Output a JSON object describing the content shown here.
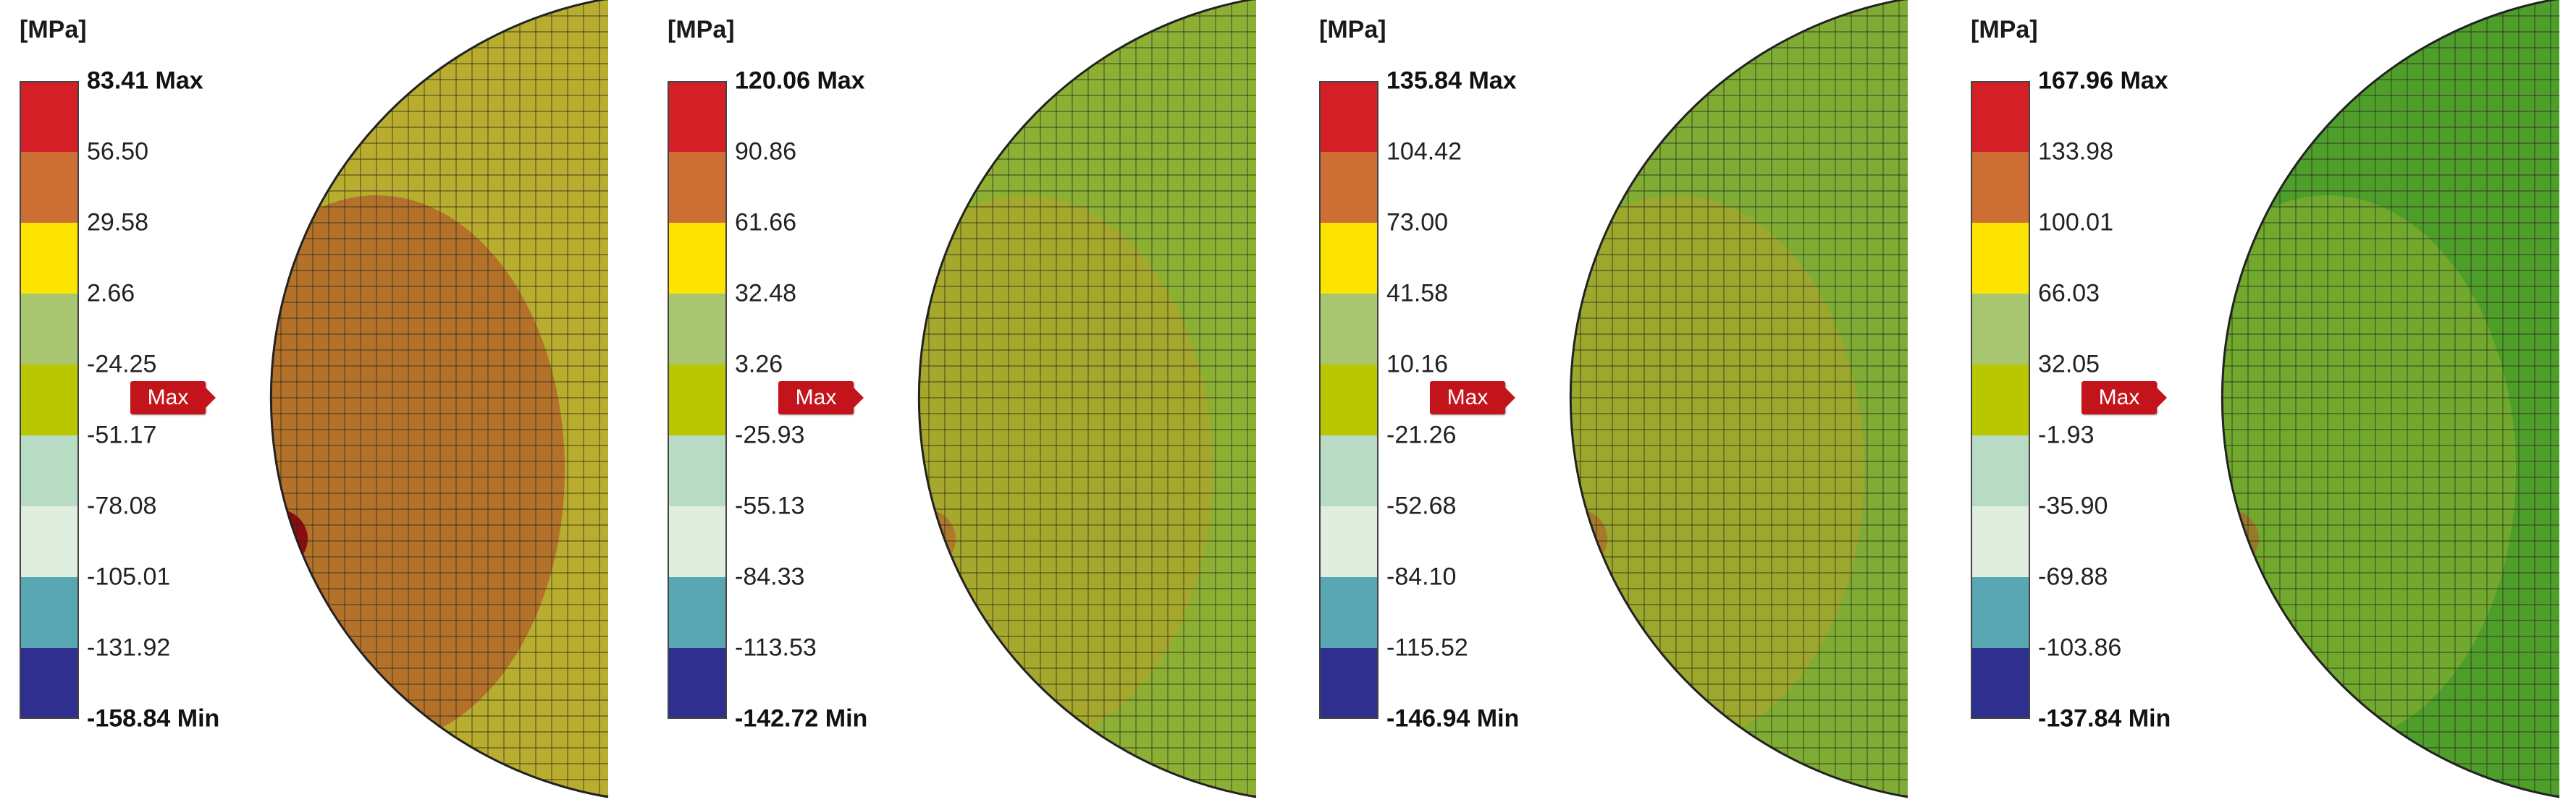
{
  "colorscale": [
    "#d41f26",
    "#cd6e34",
    "#fde400",
    "#a7c66f",
    "#b9c700",
    "#b8dcc3",
    "#dfeedf",
    "#5aa7b4",
    "#2e2f8e"
  ],
  "panels": [
    {
      "unit": "[MPa]",
      "labels": [
        "83.41 Max",
        "56.50",
        "29.58",
        "2.66",
        "-24.25",
        "-51.17",
        "-78.08",
        "-105.01",
        "-131.92",
        "-158.84 Min"
      ],
      "marker": "Max",
      "fill": {
        "base": "#b9ad30",
        "ring": "#b36a2a",
        "hot": "#8c0d0f",
        "edge": "#5aa7b4"
      }
    },
    {
      "unit": "[MPa]",
      "labels": [
        "120.06 Max",
        "90.86",
        "61.66",
        "32.48",
        "3.26",
        "-25.93",
        "-55.13",
        "-84.33",
        "-113.53",
        "-142.72 Min"
      ],
      "marker": "Max",
      "fill": {
        "base": "#8cb033",
        "ring": "#a8a62c",
        "hot": "#b25a28",
        "edge": "#3f8fb0"
      }
    },
    {
      "unit": "[MPa]",
      "labels": [
        "135.84 Max",
        "104.42",
        "73.00",
        "41.58",
        "10.16",
        "-21.26",
        "-52.68",
        "-84.10",
        "-115.52",
        "-146.94 Min"
      ],
      "marker": "Max",
      "fill": {
        "base": "#7fac34",
        "ring": "#9ea62c",
        "hot": "#b25a28",
        "edge": "#3f8fb0"
      }
    },
    {
      "unit": "[MPa]",
      "labels": [
        "167.96 Max",
        "133.98",
        "100.01",
        "66.03",
        "32.05",
        "-1.93",
        "-35.90",
        "-69.88",
        "-103.86",
        "-137.84 Min"
      ],
      "marker": "Max",
      "fill": {
        "base": "#4e9e2c",
        "ring": "#74aa2e",
        "hot": "#b25a28",
        "edge": "#3f8fb0"
      }
    }
  ]
}
